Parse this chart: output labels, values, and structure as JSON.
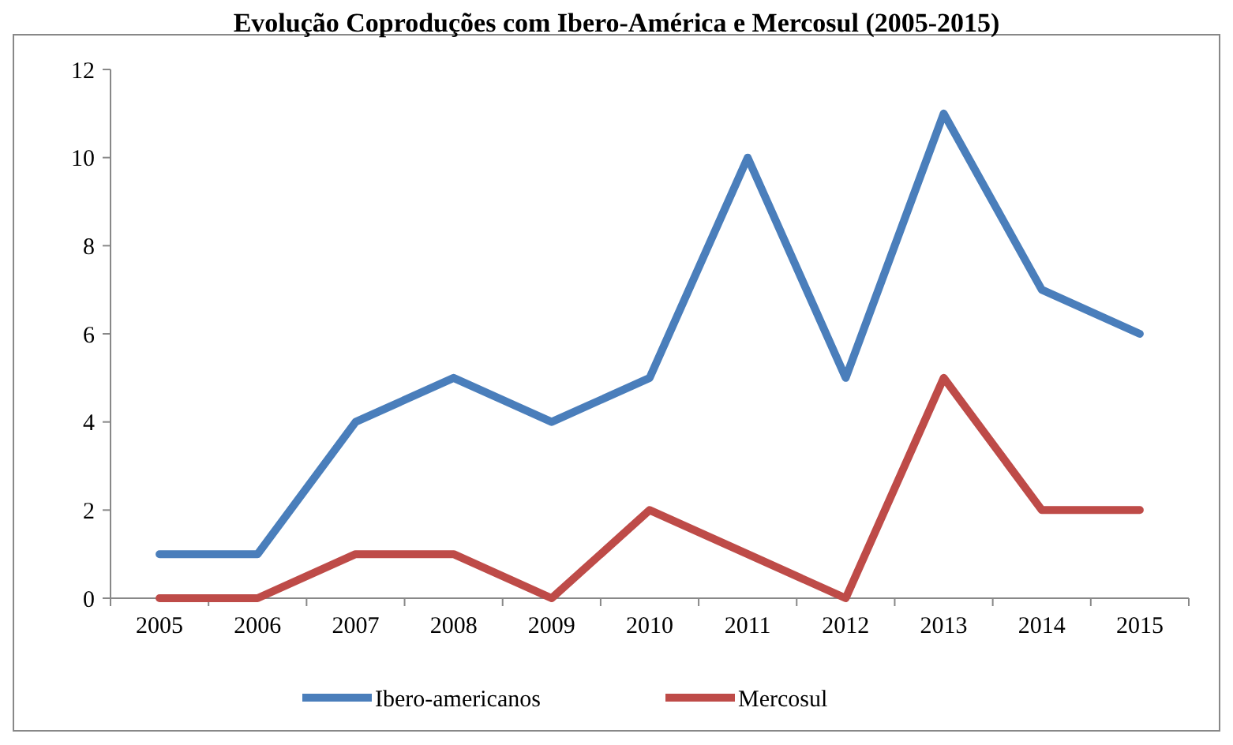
{
  "chart_data": {
    "type": "line",
    "title": "Evolução Coproduções com Ibero-América e Mercosul (2005-2015)",
    "categories": [
      "2005",
      "2006",
      "2007",
      "2008",
      "2009",
      "2010",
      "2011",
      "2012",
      "2013",
      "2014",
      "2015"
    ],
    "series": [
      {
        "name": "Ibero-americanos",
        "color": "#4a7ebb",
        "values": [
          1,
          1,
          4,
          5,
          4,
          5,
          10,
          5,
          11,
          7,
          6
        ]
      },
      {
        "name": "Mercosul",
        "color": "#be4b48",
        "values": [
          0,
          0,
          1,
          1,
          0,
          2,
          1,
          0,
          5,
          2,
          2
        ]
      }
    ],
    "ylim": [
      0,
      12
    ],
    "yticks": [
      0,
      2,
      4,
      6,
      8,
      10,
      12
    ],
    "legend": "bottom",
    "grid": false,
    "line_style": "solid"
  }
}
